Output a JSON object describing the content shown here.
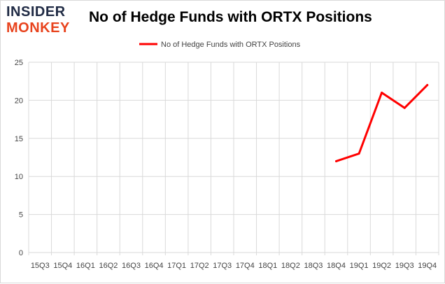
{
  "brand": {
    "line1": "INSIDER",
    "line2": "MONKEY"
  },
  "colors": {
    "series": "#ff0000",
    "grid": "#d9d9d9",
    "logo_dark": "#1f2a44",
    "logo_accent": "#e8431d"
  },
  "chart_data": {
    "type": "line",
    "title": "No of Hedge Funds with ORTX Positions",
    "xlabel": "",
    "ylabel": "",
    "categories": [
      "15Q3",
      "15Q4",
      "16Q1",
      "16Q2",
      "16Q3",
      "16Q4",
      "17Q1",
      "17Q2",
      "17Q3",
      "17Q4",
      "18Q1",
      "18Q2",
      "18Q3",
      "18Q4",
      "19Q1",
      "19Q2",
      "19Q3",
      "19Q4"
    ],
    "series": [
      {
        "name": "No of Hedge Funds with ORTX Positions",
        "values": [
          null,
          null,
          null,
          null,
          null,
          null,
          null,
          null,
          null,
          null,
          null,
          null,
          null,
          12,
          13,
          21,
          19,
          22
        ]
      }
    ],
    "ylim": [
      0,
      25
    ],
    "yticks": [
      0,
      5,
      10,
      15,
      20,
      25
    ],
    "grid": {
      "horizontal": true,
      "vertical": true
    },
    "legend_position": "top-center"
  }
}
